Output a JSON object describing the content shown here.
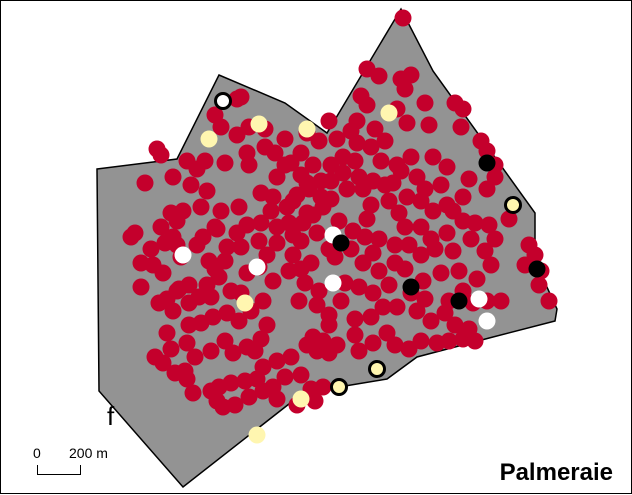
{
  "map": {
    "title": "Palmeraie",
    "panel_letter": "f",
    "scale": {
      "zero_label": "0",
      "distance_label": "200 m"
    },
    "colors": {
      "background": "#ffffff",
      "polygon_fill": "#939393",
      "polygon_stroke": "#000000",
      "red": "#c4002c",
      "pale_yellow": "#fff6b0",
      "white": "#ffffff",
      "black": "#000000"
    }
  }
}
